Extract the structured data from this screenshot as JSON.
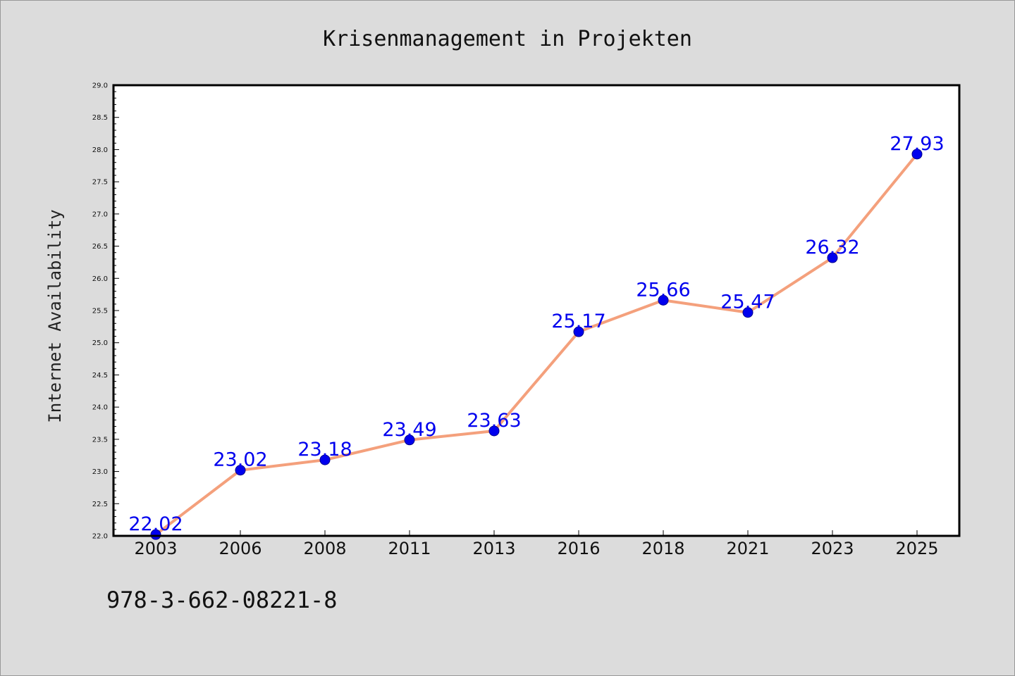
{
  "chart_data": {
    "type": "line",
    "title": "Krisenmanagement in Projekten",
    "xlabel": "",
    "ylabel": "Internet Availability",
    "categories": [
      "2003",
      "2006",
      "2008",
      "2011",
      "2013",
      "2016",
      "2018",
      "2021",
      "2023",
      "2025"
    ],
    "series": [
      {
        "values": [
          22.02,
          23.02,
          23.18,
          23.49,
          23.63,
          25.17,
          25.66,
          25.47,
          26.32,
          27.93
        ],
        "labels": [
          "22.02",
          "23.02",
          "23.18",
          "23.49",
          "23.63",
          "25.17",
          "25.66",
          "25.47",
          "26.32",
          "27.93"
        ],
        "line_color": "#f4a07c",
        "marker_color": "#0000ee",
        "label_color": "#0000ee"
      }
    ],
    "ylim": [
      22.0,
      29.0
    ],
    "yticks": [
      "22.0",
      "22.5",
      "23.0",
      "23.5",
      "24.0",
      "24.5",
      "25.0",
      "25.5",
      "26.0",
      "26.5",
      "27.0",
      "27.5",
      "28.0",
      "28.5",
      "29.0"
    ],
    "grid": false,
    "legend": "none"
  },
  "footer": {
    "isbn": "978-3-662-08221-8"
  },
  "colors": {
    "figure_background": "#dcdcdc",
    "plot_background": "#ffffff",
    "frame": "#000000"
  }
}
